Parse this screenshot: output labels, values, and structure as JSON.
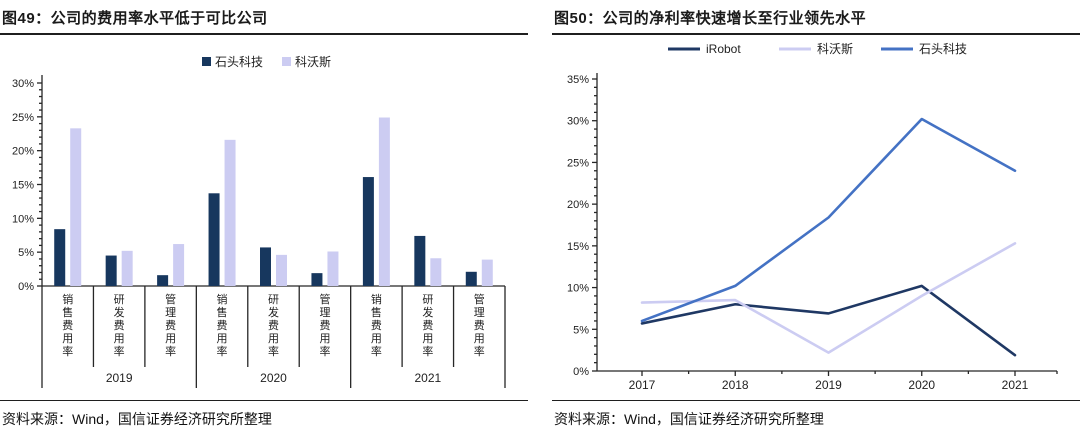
{
  "left_panel": {
    "title": "图49：公司的费用率水平低于可比公司",
    "source": "资料来源：Wind，国信证券经济研究所整理"
  },
  "right_panel": {
    "title": "图50：公司的净利率快速增长至行业领先水平",
    "source": "资料来源：Wind，国信证券经济研究所整理"
  },
  "colors": {
    "navy": "#17375E",
    "dark_navy": "#1F3864",
    "lavender": "#CCCCF2",
    "blue": "#4472C4",
    "axis": "#262626",
    "text": "#222222"
  },
  "chart_data": [
    {
      "type": "bar",
      "title": "图49：公司的费用率水平低于可比公司",
      "groups": [
        "2019",
        "2020",
        "2021"
      ],
      "categories": [
        "销售费用率",
        "研发费用率",
        "管理费用率",
        "销售费用率",
        "研发费用率",
        "管理费用率",
        "销售费用率",
        "研发费用率",
        "管理费用率"
      ],
      "series": [
        {
          "name": "石头科技",
          "color": "#17375E",
          "values": [
            8.4,
            4.5,
            1.6,
            13.7,
            5.7,
            1.9,
            16.1,
            7.4,
            2.1
          ]
        },
        {
          "name": "科沃斯",
          "color": "#CCCCF2",
          "values": [
            23.3,
            5.2,
            6.2,
            21.6,
            4.6,
            5.1,
            24.9,
            4.1,
            3.9
          ]
        }
      ],
      "ylim": [
        0,
        30
      ],
      "ytick_major": 5,
      "ytick_minor": 1,
      "ytick_labels": [
        "0%",
        "5%",
        "10%",
        "15%",
        "20%",
        "25%",
        "30%"
      ],
      "legend_position": "top",
      "grid": false,
      "ylabel": "",
      "xlabel": ""
    },
    {
      "type": "line",
      "title": "图50：公司的净利率快速增长至行业领先水平",
      "x": [
        "2017",
        "2018",
        "2019",
        "2020",
        "2021"
      ],
      "series": [
        {
          "name": "iRobot",
          "color": "#1F3864",
          "values": [
            5.7,
            8.0,
            6.9,
            10.2,
            1.9
          ]
        },
        {
          "name": "科沃斯",
          "color": "#CCCCF2",
          "values": [
            8.2,
            8.5,
            2.2,
            9.0,
            15.3
          ]
        },
        {
          "name": "石头科技",
          "color": "#4472C4",
          "values": [
            6.0,
            10.2,
            18.4,
            30.2,
            24.0
          ]
        }
      ],
      "ylim": [
        0,
        35
      ],
      "ytick_major": 5,
      "ytick_minor": 1,
      "ytick_labels": [
        "0%",
        "5%",
        "10%",
        "15%",
        "20%",
        "25%",
        "30%",
        "35%"
      ],
      "legend_position": "top",
      "grid": false,
      "ylabel": "",
      "xlabel": ""
    }
  ]
}
